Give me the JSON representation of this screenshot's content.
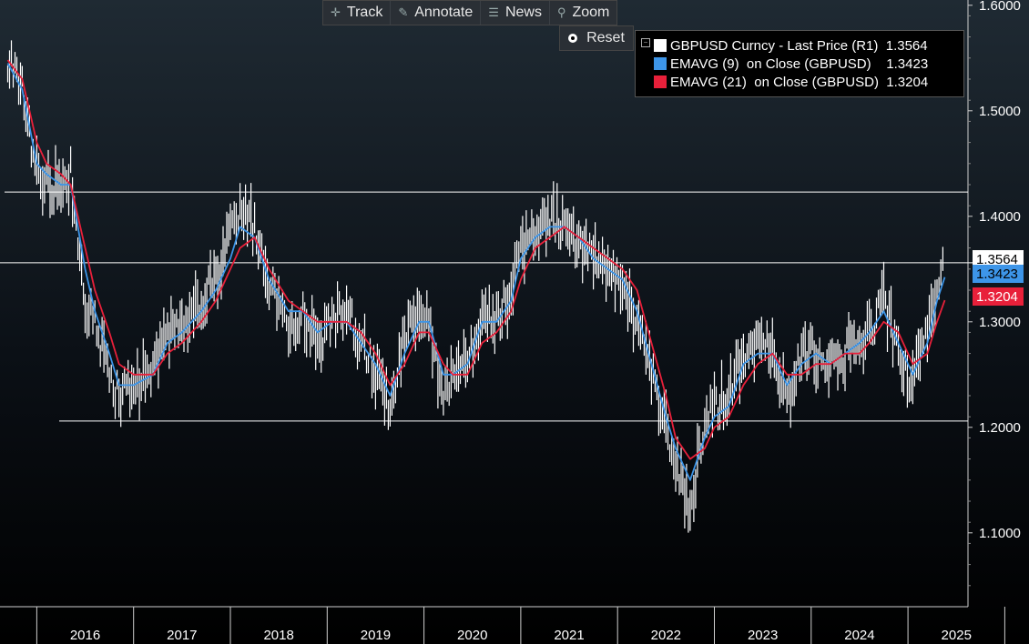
{
  "toolbar": {
    "track": "Track",
    "annotate": "Annotate",
    "news": "News",
    "zoom": "Zoom",
    "reset": "Reset",
    "icons": [
      "crosshair-icon",
      "pencil-icon",
      "news-icon",
      "magnifier-icon",
      "radio-icon"
    ]
  },
  "legend": {
    "rows": [
      {
        "label": "GBPUSD Curncy - Last Price (R1)",
        "value": "1.3564",
        "color": "#ffffff"
      },
      {
        "label": "EMAVG (9)  on Close (GBPUSD)",
        "value": "1.3423",
        "color": "#3d95e8"
      },
      {
        "label": "EMAVG (21)  on Close (GBPUSD)",
        "value": "1.3204",
        "color": "#e8203a"
      }
    ]
  },
  "tags": [
    {
      "value": "1.3564",
      "bg": "#ffffff",
      "fg": "#000000"
    },
    {
      "value": "1.3423",
      "bg": "#3d95e8",
      "fg": "#000000"
    },
    {
      "value": "1.3204",
      "bg": "#e8203a",
      "fg": "#ffffff"
    }
  ],
  "chart_data": {
    "type": "line",
    "ylim": [
      1.03,
      1.605
    ],
    "yticks": [
      "1.1000",
      "1.2000",
      "1.3000",
      "1.4000",
      "1.5000",
      "1.6000"
    ],
    "x_year_labels": [
      "2016",
      "2017",
      "2018",
      "2019",
      "2020",
      "2021",
      "2022",
      "2023",
      "2024",
      "2025"
    ],
    "grid": false,
    "legend_placement": "top-right",
    "horizontal_lines": [
      1.423,
      1.356,
      1.206
    ],
    "series": [
      {
        "name": "GBPUSD Curncy - Last Price (R1)",
        "color": "#ffffff",
        "x": [
          2015.7,
          2015.85,
          2016.0,
          2016.1,
          2016.25,
          2016.35,
          2016.5,
          2016.6,
          2016.75,
          2016.85,
          2017.0,
          2017.2,
          2017.35,
          2017.5,
          2017.7,
          2017.85,
          2018.0,
          2018.1,
          2018.25,
          2018.4,
          2018.6,
          2018.75,
          2018.9,
          2019.05,
          2019.2,
          2019.35,
          2019.5,
          2019.65,
          2019.8,
          2019.95,
          2020.05,
          2020.2,
          2020.3,
          2020.45,
          2020.6,
          2020.75,
          2020.9,
          2021.0,
          2021.15,
          2021.3,
          2021.45,
          2021.6,
          2021.75,
          2021.9,
          2022.05,
          2022.2,
          2022.35,
          2022.5,
          2022.6,
          2022.75,
          2022.9,
          2023.0,
          2023.15,
          2023.3,
          2023.45,
          2023.6,
          2023.75,
          2023.9,
          2024.05,
          2024.2,
          2024.35,
          2024.5,
          2024.6,
          2024.75,
          2024.9,
          2025.05,
          2025.2,
          2025.3,
          2025.38
        ],
        "y": [
          1.55,
          1.52,
          1.44,
          1.43,
          1.43,
          1.44,
          1.32,
          1.3,
          1.25,
          1.23,
          1.24,
          1.25,
          1.29,
          1.3,
          1.32,
          1.34,
          1.38,
          1.41,
          1.39,
          1.33,
          1.3,
          1.31,
          1.28,
          1.3,
          1.31,
          1.28,
          1.25,
          1.22,
          1.29,
          1.31,
          1.3,
          1.23,
          1.25,
          1.26,
          1.31,
          1.3,
          1.33,
          1.37,
          1.39,
          1.4,
          1.39,
          1.37,
          1.36,
          1.35,
          1.34,
          1.3,
          1.25,
          1.2,
          1.16,
          1.12,
          1.21,
          1.22,
          1.23,
          1.27,
          1.28,
          1.27,
          1.22,
          1.27,
          1.27,
          1.26,
          1.27,
          1.28,
          1.29,
          1.32,
          1.27,
          1.24,
          1.29,
          1.33,
          1.356
        ]
      },
      {
        "name": "EMAVG (9)  on Close (GBPUSD)",
        "color": "#3d95e8",
        "x": [
          2015.7,
          2015.85,
          2016.0,
          2016.1,
          2016.25,
          2016.35,
          2016.5,
          2016.6,
          2016.75,
          2016.85,
          2017.0,
          2017.2,
          2017.35,
          2017.5,
          2017.7,
          2017.85,
          2018.0,
          2018.1,
          2018.25,
          2018.4,
          2018.6,
          2018.75,
          2018.9,
          2019.05,
          2019.2,
          2019.35,
          2019.5,
          2019.65,
          2019.8,
          2019.95,
          2020.05,
          2020.2,
          2020.3,
          2020.45,
          2020.6,
          2020.75,
          2020.9,
          2021.0,
          2021.15,
          2021.3,
          2021.45,
          2021.6,
          2021.75,
          2021.9,
          2022.05,
          2022.2,
          2022.35,
          2022.5,
          2022.6,
          2022.75,
          2022.9,
          2023.0,
          2023.15,
          2023.3,
          2023.45,
          2023.6,
          2023.75,
          2023.9,
          2024.05,
          2024.2,
          2024.35,
          2024.5,
          2024.6,
          2024.75,
          2024.9,
          2025.05,
          2025.2,
          2025.3,
          2025.38
        ],
        "y": [
          1.545,
          1.52,
          1.45,
          1.44,
          1.43,
          1.43,
          1.35,
          1.31,
          1.27,
          1.24,
          1.24,
          1.25,
          1.28,
          1.29,
          1.31,
          1.33,
          1.36,
          1.39,
          1.38,
          1.34,
          1.31,
          1.31,
          1.29,
          1.3,
          1.3,
          1.28,
          1.26,
          1.23,
          1.27,
          1.3,
          1.3,
          1.25,
          1.25,
          1.26,
          1.3,
          1.3,
          1.32,
          1.36,
          1.38,
          1.39,
          1.39,
          1.38,
          1.36,
          1.35,
          1.34,
          1.31,
          1.26,
          1.21,
          1.18,
          1.15,
          1.19,
          1.21,
          1.22,
          1.26,
          1.27,
          1.27,
          1.24,
          1.26,
          1.27,
          1.26,
          1.27,
          1.28,
          1.29,
          1.31,
          1.28,
          1.25,
          1.28,
          1.32,
          1.3423
        ]
      },
      {
        "name": "EMAVG (21)  on Close (GBPUSD)",
        "color": "#e8203a",
        "x": [
          2015.7,
          2015.85,
          2016.0,
          2016.1,
          2016.25,
          2016.35,
          2016.5,
          2016.6,
          2016.75,
          2016.85,
          2017.0,
          2017.2,
          2017.35,
          2017.5,
          2017.7,
          2017.85,
          2018.0,
          2018.1,
          2018.25,
          2018.4,
          2018.6,
          2018.75,
          2018.9,
          2019.05,
          2019.2,
          2019.35,
          2019.5,
          2019.65,
          2019.8,
          2019.95,
          2020.05,
          2020.2,
          2020.3,
          2020.45,
          2020.6,
          2020.75,
          2020.9,
          2021.0,
          2021.15,
          2021.3,
          2021.45,
          2021.6,
          2021.75,
          2021.9,
          2022.05,
          2022.2,
          2022.35,
          2022.5,
          2022.6,
          2022.75,
          2022.9,
          2023.0,
          2023.15,
          2023.3,
          2023.45,
          2023.6,
          2023.75,
          2023.9,
          2024.05,
          2024.2,
          2024.35,
          2024.5,
          2024.6,
          2024.75,
          2024.9,
          2025.05,
          2025.2,
          2025.3,
          2025.38
        ],
        "y": [
          1.548,
          1.53,
          1.47,
          1.45,
          1.44,
          1.43,
          1.37,
          1.33,
          1.29,
          1.26,
          1.25,
          1.25,
          1.27,
          1.28,
          1.3,
          1.32,
          1.35,
          1.37,
          1.38,
          1.35,
          1.32,
          1.31,
          1.3,
          1.3,
          1.3,
          1.29,
          1.27,
          1.24,
          1.26,
          1.29,
          1.29,
          1.26,
          1.25,
          1.25,
          1.28,
          1.29,
          1.31,
          1.34,
          1.37,
          1.38,
          1.39,
          1.38,
          1.37,
          1.36,
          1.35,
          1.33,
          1.28,
          1.23,
          1.19,
          1.17,
          1.18,
          1.2,
          1.21,
          1.24,
          1.26,
          1.27,
          1.25,
          1.25,
          1.26,
          1.26,
          1.27,
          1.27,
          1.28,
          1.3,
          1.29,
          1.26,
          1.27,
          1.3,
          1.3204
        ]
      }
    ]
  }
}
